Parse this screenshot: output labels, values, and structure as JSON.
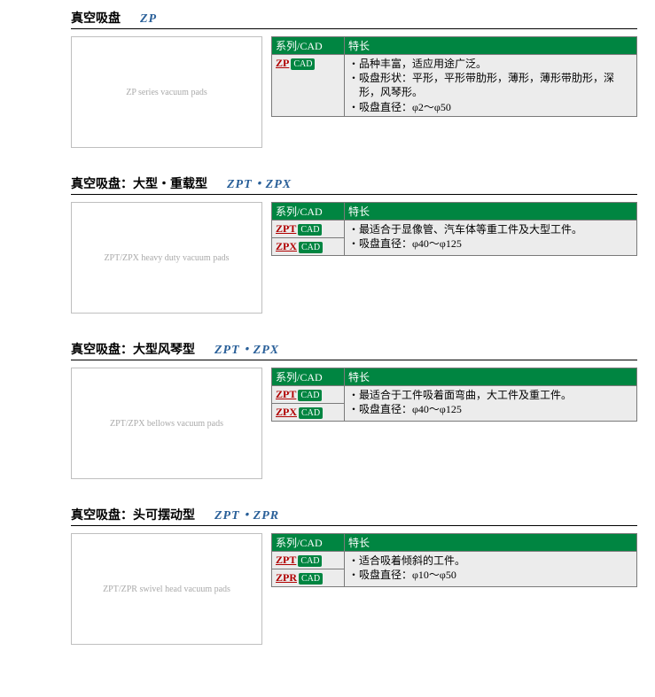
{
  "labels": {
    "series_cad_header": "系列/CAD",
    "feature_header": "特长",
    "cad_badge": "CAD"
  },
  "sections": [
    {
      "title_main": "真空吸盘",
      "title_code": "ZP",
      "image_alt": "ZP series vacuum pads",
      "series": [
        {
          "code": "ZP"
        }
      ],
      "features": [
        "品种丰富，适应用途广泛。",
        "吸盘形状：平形，平形带肋形，薄形，薄形带肋形，深形，风琴形。",
        "吸盘直径：φ2～φ50"
      ]
    },
    {
      "title_main": "真空吸盘：大型・重载型",
      "title_code": "ZPT・ZPX",
      "image_alt": "ZPT/ZPX heavy duty vacuum pads",
      "series": [
        {
          "code": "ZPT"
        },
        {
          "code": "ZPX"
        }
      ],
      "features": [
        "最适合于显像管、汽车体等重工件及大型工件。",
        "吸盘直径：φ40～φ125"
      ]
    },
    {
      "title_main": "真空吸盘：大型风琴型",
      "title_code": "ZPT・ZPX",
      "image_alt": "ZPT/ZPX bellows vacuum pads",
      "series": [
        {
          "code": "ZPT"
        },
        {
          "code": "ZPX"
        }
      ],
      "features": [
        "最适合于工件吸着面弯曲，大工件及重工件。",
        "吸盘直径：φ40～φ125"
      ]
    },
    {
      "title_main": "真空吸盘：头可摆动型",
      "title_code": "ZPT・ZPR",
      "image_alt": "ZPT/ZPR swivel head vacuum pads",
      "series": [
        {
          "code": "ZPT"
        },
        {
          "code": "ZPR"
        }
      ],
      "features": [
        "适合吸着倾斜的工件。",
        "吸盘直径：φ10～φ50"
      ]
    }
  ]
}
